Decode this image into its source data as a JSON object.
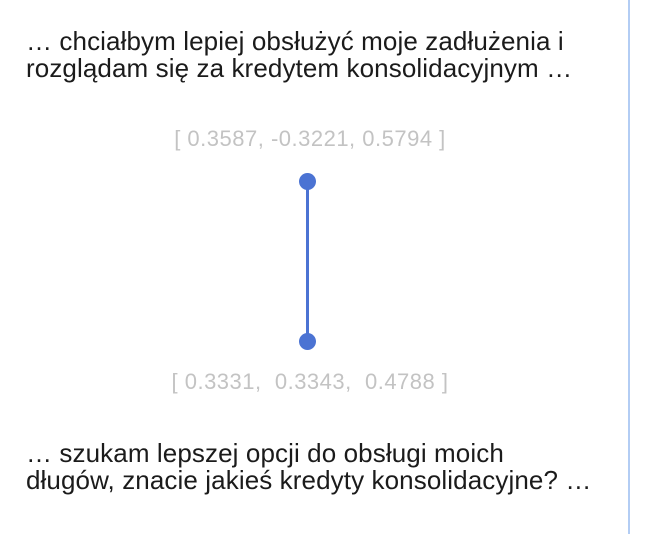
{
  "colors": {
    "background": "#ffffff",
    "body_text": "#1b1b1b",
    "vector_text": "#c3c3c3",
    "node": "#4b73d3",
    "edge": "#4b73d3",
    "page_edge": "#b3cdf4"
  },
  "quotes": {
    "top": [
      "… chciałbym lepiej obsłużyć moje zadłużenia i",
      "rozglądam się za kredytem konsolidacyjnym …"
    ],
    "bottom": [
      "… szukam lepszej opcji do obsługi moich",
      "długów, znacie jakieś kredyty konsolidacyjne? …"
    ]
  },
  "vectors": {
    "top": "[ 0.3587, -0.3221, 0.5794 ]",
    "bottom": "[ 0.3331,  0.3343,  0.4788 ]"
  }
}
